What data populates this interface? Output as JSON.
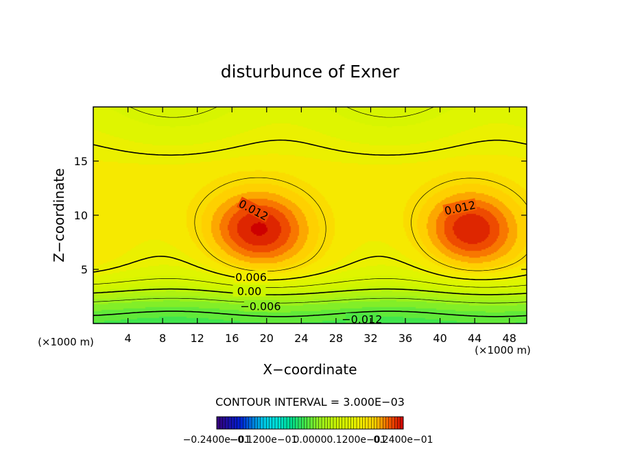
{
  "chart_data": {
    "type": "contour",
    "title": "disturbunce of Exner",
    "xlabel": "X−coordinate",
    "ylabel": "Z−coordinate",
    "x_unit": "(×1000 m)",
    "y_unit": "(×1000 m)",
    "xlim": [
      0,
      50
    ],
    "ylim": [
      0,
      20
    ],
    "x_ticks": [
      4,
      8,
      12,
      16,
      20,
      24,
      28,
      32,
      36,
      40,
      44,
      48
    ],
    "y_ticks": [
      5,
      10,
      15
    ],
    "contour_labels": [
      {
        "text": "0.012",
        "x": 18.5,
        "z": 10.5,
        "angle": 28
      },
      {
        "text": "0.012",
        "x": 42.3,
        "z": 10.7,
        "angle": -12
      },
      {
        "text": "0.006",
        "x": 18.2,
        "z": 4.3,
        "angle": 0
      },
      {
        "text": "0.00",
        "x": 18.0,
        "z": 3.0,
        "angle": 0
      },
      {
        "text": "−0.006",
        "x": 19.3,
        "z": 1.6,
        "angle": 0
      },
      {
        "text": "−0.012",
        "x": 31.0,
        "z": 0.4,
        "angle": 0
      }
    ],
    "contour_interval_text": "CONTOUR INTERVAL = 3.000E−03",
    "colorbar": {
      "min": -0.024,
      "max": 0.024,
      "tick_labels": [
        "−0.2400e−01",
        "−0.1200e−01",
        "0.0000",
        "0.1200e−01",
        "0.2400e−01"
      ]
    },
    "grid": false
  }
}
